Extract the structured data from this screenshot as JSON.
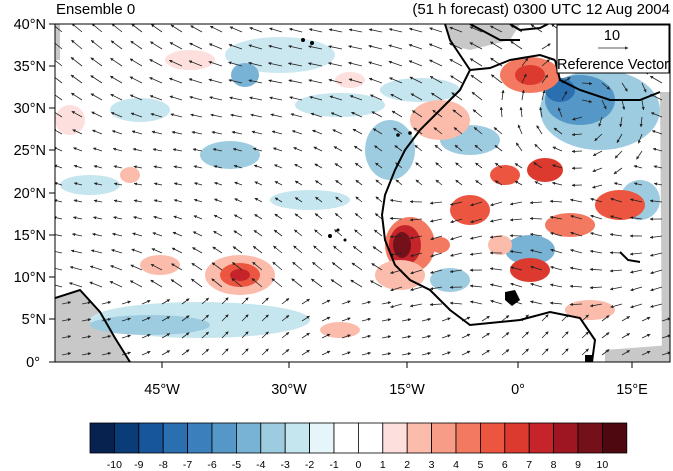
{
  "header": {
    "ensemble_label": "Ensemble 0",
    "forecast_label": "(51 h forecast) 0300 UTC 12 Aug 2004"
  },
  "map": {
    "lat_ticks": [
      "40°N",
      "35°N",
      "30°N",
      "25°N",
      "20°N",
      "15°N",
      "10°N",
      "5°N",
      "0°"
    ],
    "lon_ticks": [
      "45°W",
      "30°W",
      "15°W",
      "0°",
      "15°E"
    ],
    "colors": {
      "ocean": "#ffffff",
      "land_mask": "#c8c8c8",
      "coast": "#000000",
      "vector": "#222222"
    }
  },
  "reference_vector": {
    "magnitude": "10",
    "label": "Reference Vector"
  },
  "colorbar": {
    "labels": [
      "-10",
      "-9",
      "-8",
      "-7",
      "-6",
      "-5",
      "-4",
      "-3",
      "-2",
      "-1",
      "0",
      "1",
      "2",
      "3",
      "4",
      "5",
      "6",
      "7",
      "8",
      "9",
      "10"
    ],
    "colors": [
      "#08224f",
      "#0a3c78",
      "#17569a",
      "#2a6faf",
      "#3b80bd",
      "#5598c8",
      "#78b3d6",
      "#9dcce0",
      "#c5e5ef",
      "#e6f5fa",
      "#ffffff",
      "#ffffff",
      "#fde0dd",
      "#fbbcac",
      "#f79c86",
      "#f37a61",
      "#ec5540",
      "#dd3a2f",
      "#c5252a",
      "#9e1621",
      "#74101a",
      "#4e0810"
    ]
  }
}
